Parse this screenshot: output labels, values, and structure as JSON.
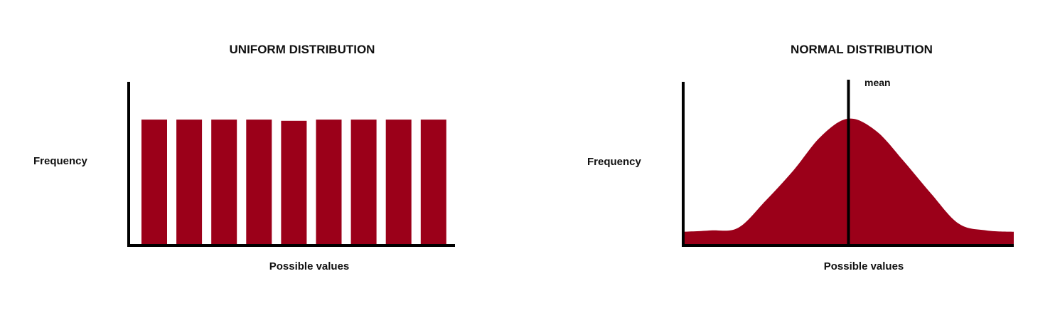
{
  "chart_data": [
    {
      "type": "bar",
      "title": "UNIFORM DISTRIBUTION",
      "xlabel": "Possible values",
      "ylabel": "Frequency",
      "categories": [
        "",
        "",
        "",
        "",
        "",
        "",
        "",
        "",
        ""
      ],
      "values": [
        1,
        1,
        1,
        1,
        0.99,
        1,
        1,
        1,
        1
      ],
      "ylim": [
        0,
        1.3
      ],
      "grid": false,
      "color": "#9b0019"
    },
    {
      "type": "area",
      "title": "NORMAL DISTRIBUTION",
      "xlabel": "Possible values",
      "ylabel": "Frequency",
      "annotation": "mean",
      "x": [
        -3.0,
        -2.5,
        -2.0,
        -1.5,
        -1.0,
        -0.5,
        0.0,
        0.5,
        1.0,
        1.5,
        2.0,
        2.5,
        3.0
      ],
      "values": [
        0.1,
        0.11,
        0.13,
        0.33,
        0.55,
        0.8,
        0.93,
        0.84,
        0.62,
        0.38,
        0.16,
        0.11,
        0.1
      ],
      "mean_x": 0.0,
      "ylim": [
        0,
        1.2
      ],
      "grid": false,
      "color": "#9b0019"
    }
  ]
}
